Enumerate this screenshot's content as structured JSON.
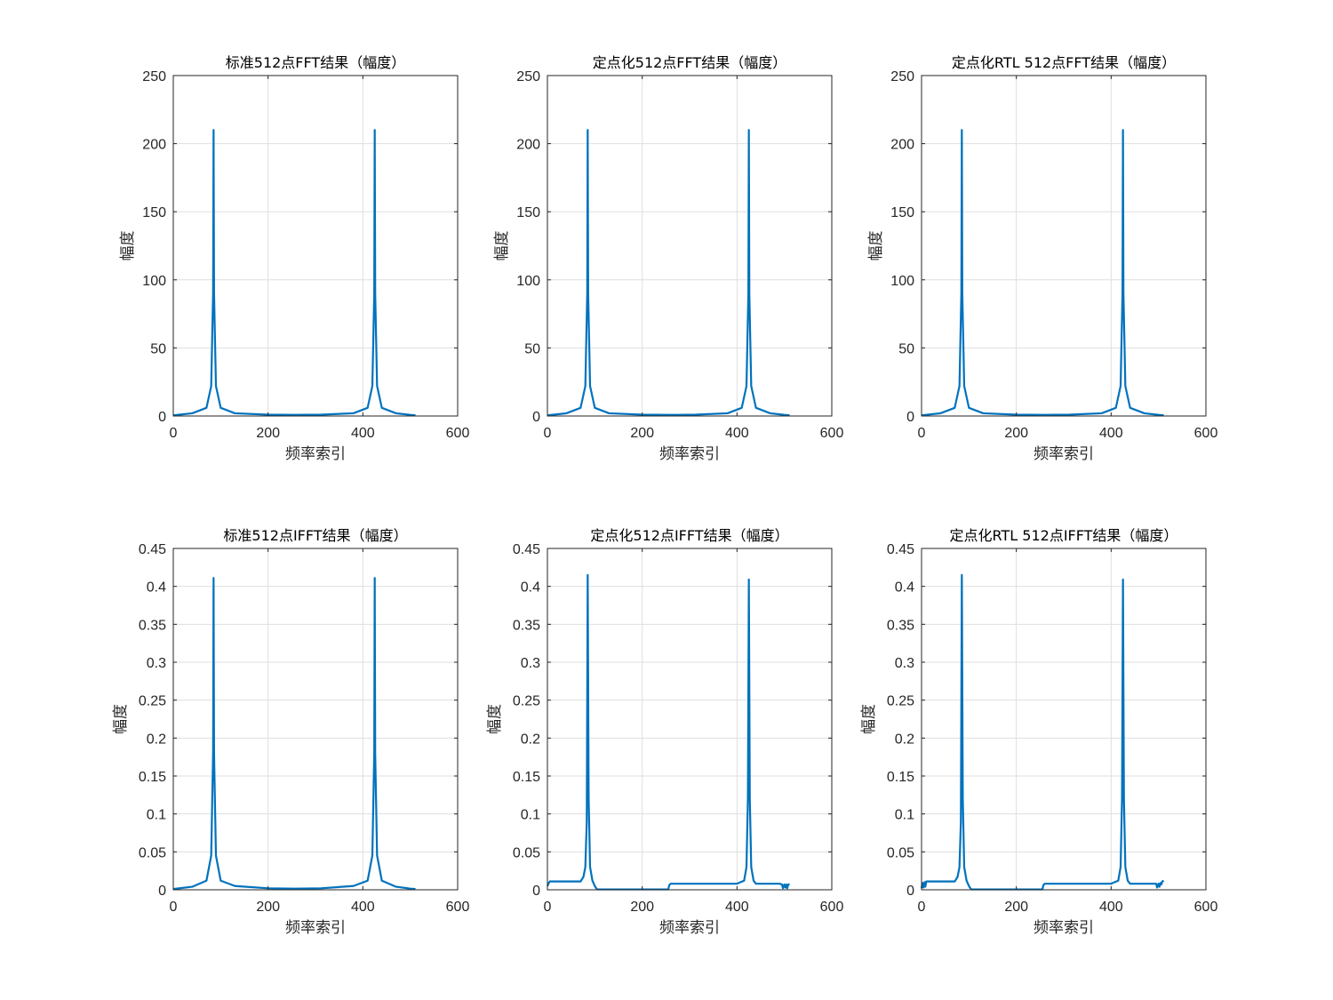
{
  "chart_data": [
    {
      "type": "line",
      "title": "标准512点FFT结果（幅度）",
      "xlabel": "频率索引",
      "ylabel": "幅度",
      "xlim": [
        0,
        600
      ],
      "ylim": [
        0,
        250
      ],
      "xticks": [
        "0",
        "200",
        "400",
        "600"
      ],
      "yticks": [
        "0",
        "50",
        "100",
        "150",
        "200",
        "250"
      ],
      "grid": true,
      "series": [
        {
          "color": "#0072BD",
          "x": [
            0,
            40,
            70,
            80,
            84,
            85,
            86,
            90,
            100,
            130,
            200,
            256,
            312,
            380,
            410,
            420,
            424,
            425,
            426,
            430,
            440,
            470,
            500,
            511
          ],
          "y": [
            0.5,
            2,
            6,
            22,
            90,
            210,
            90,
            22,
            6,
            2,
            1,
            0.8,
            1,
            2,
            6,
            22,
            90,
            210,
            90,
            22,
            6,
            2,
            0.8,
            0.5
          ]
        }
      ]
    },
    {
      "type": "line",
      "title": "定点化512点FFT结果（幅度）",
      "xlabel": "频率索引",
      "ylabel": "幅度",
      "xlim": [
        0,
        600
      ],
      "ylim": [
        0,
        250
      ],
      "xticks": [
        "0",
        "200",
        "400",
        "600"
      ],
      "yticks": [
        "0",
        "50",
        "100",
        "150",
        "200",
        "250"
      ],
      "grid": true,
      "series": [
        {
          "color": "#0072BD",
          "x": [
            0,
            40,
            70,
            80,
            84,
            85,
            86,
            90,
            100,
            130,
            200,
            256,
            312,
            380,
            410,
            420,
            424,
            425,
            426,
            430,
            440,
            470,
            500,
            511
          ],
          "y": [
            0.5,
            2,
            6,
            22,
            90,
            210,
            90,
            22,
            6,
            2,
            1,
            0.8,
            1,
            2,
            6,
            22,
            90,
            210,
            90,
            22,
            6,
            2,
            0.8,
            0.5
          ]
        }
      ]
    },
    {
      "type": "line",
      "title": "定点化RTL 512点FFT结果（幅度）",
      "xlabel": "频率索引",
      "ylabel": "幅度",
      "xlim": [
        0,
        600
      ],
      "ylim": [
        0,
        250
      ],
      "xticks": [
        "0",
        "200",
        "400",
        "600"
      ],
      "yticks": [
        "0",
        "50",
        "100",
        "150",
        "200",
        "250"
      ],
      "grid": true,
      "series": [
        {
          "color": "#0072BD",
          "x": [
            0,
            40,
            70,
            80,
            84,
            85,
            86,
            90,
            100,
            130,
            200,
            256,
            312,
            380,
            410,
            420,
            424,
            425,
            426,
            430,
            440,
            470,
            500,
            511
          ],
          "y": [
            0.5,
            2,
            6,
            22,
            90,
            210,
            90,
            22,
            6,
            2,
            1,
            0.8,
            1,
            2,
            6,
            22,
            90,
            210,
            90,
            22,
            6,
            2,
            0.8,
            0.5
          ]
        }
      ]
    },
    {
      "type": "line",
      "title": "标准512点IFFT结果（幅度）",
      "xlabel": "频率索引",
      "ylabel": "幅度",
      "xlim": [
        0,
        600
      ],
      "ylim": [
        0,
        0.45
      ],
      "xticks": [
        "0",
        "200",
        "400",
        "600"
      ],
      "yticks": [
        "0",
        "0.05",
        "0.1",
        "0.15",
        "0.2",
        "0.25",
        "0.3",
        "0.35",
        "0.4",
        "0.45"
      ],
      "grid": true,
      "series": [
        {
          "color": "#0072BD",
          "x": [
            0,
            40,
            70,
            80,
            84,
            85,
            86,
            90,
            100,
            130,
            200,
            256,
            312,
            380,
            410,
            420,
            424,
            425,
            426,
            430,
            440,
            470,
            500,
            511
          ],
          "y": [
            0.001,
            0.004,
            0.012,
            0.045,
            0.18,
            0.411,
            0.18,
            0.045,
            0.012,
            0.005,
            0.002,
            0.0015,
            0.002,
            0.005,
            0.012,
            0.045,
            0.18,
            0.411,
            0.18,
            0.045,
            0.012,
            0.004,
            0.0015,
            0.001
          ]
        }
      ]
    },
    {
      "type": "line",
      "title": "定点化512点IFFT结果（幅度）",
      "xlabel": "频率索引",
      "ylabel": "幅度",
      "xlim": [
        0,
        600
      ],
      "ylim": [
        0,
        0.45
      ],
      "xticks": [
        "0",
        "200",
        "400",
        "600"
      ],
      "yticks": [
        "0",
        "0.05",
        "0.1",
        "0.15",
        "0.2",
        "0.25",
        "0.3",
        "0.35",
        "0.4",
        "0.45"
      ],
      "grid": true,
      "series": [
        {
          "color": "#0072BD",
          "x": [
            0,
            3,
            5,
            70,
            72,
            76,
            80,
            83,
            85,
            87,
            90,
            95,
            100,
            103,
            105,
            255,
            257,
            260,
            400,
            415,
            420,
            423,
            425,
            427,
            430,
            435,
            440,
            490,
            495,
            497,
            500,
            502,
            504,
            506,
            508,
            511
          ],
          "y": [
            0.005,
            0.009,
            0.011,
            0.011,
            0.013,
            0.017,
            0.03,
            0.09,
            0.415,
            0.12,
            0.03,
            0.012,
            0.005,
            0.002,
            0.0005,
            0.0005,
            0.006,
            0.008,
            0.008,
            0.012,
            0.03,
            0.12,
            0.409,
            0.12,
            0.03,
            0.012,
            0.008,
            0.008,
            0.007,
            0.002,
            0.007,
            0.003,
            0.007,
            0.002,
            0.007,
            0.007
          ]
        }
      ]
    },
    {
      "type": "line",
      "title": "定点化RTL 512点IFFT结果（幅度）",
      "xlabel": "频率索引",
      "ylabel": "幅度",
      "xlim": [
        0,
        600
      ],
      "ylim": [
        0,
        0.45
      ],
      "xticks": [
        "0",
        "200",
        "400",
        "600"
      ],
      "yticks": [
        "0",
        "0.05",
        "0.1",
        "0.15",
        "0.2",
        "0.25",
        "0.3",
        "0.35",
        "0.4",
        "0.45"
      ],
      "grid": true,
      "series": [
        {
          "color": "#0072BD",
          "x": [
            0,
            2,
            4,
            6,
            8,
            10,
            12,
            70,
            72,
            76,
            80,
            83,
            85,
            87,
            90,
            95,
            100,
            103,
            105,
            255,
            257,
            260,
            400,
            415,
            420,
            423,
            425,
            427,
            430,
            435,
            440,
            495,
            497,
            500,
            502,
            504,
            506,
            508,
            511
          ],
          "y": [
            0.002,
            0.009,
            0.003,
            0.01,
            0.004,
            0.011,
            0.011,
            0.011,
            0.013,
            0.017,
            0.03,
            0.09,
            0.415,
            0.12,
            0.03,
            0.012,
            0.005,
            0.002,
            0.0005,
            0.0005,
            0.006,
            0.008,
            0.008,
            0.012,
            0.03,
            0.12,
            0.409,
            0.12,
            0.03,
            0.012,
            0.008,
            0.008,
            0.003,
            0.008,
            0.004,
            0.009,
            0.007,
            0.011,
            0.012
          ]
        }
      ]
    }
  ]
}
